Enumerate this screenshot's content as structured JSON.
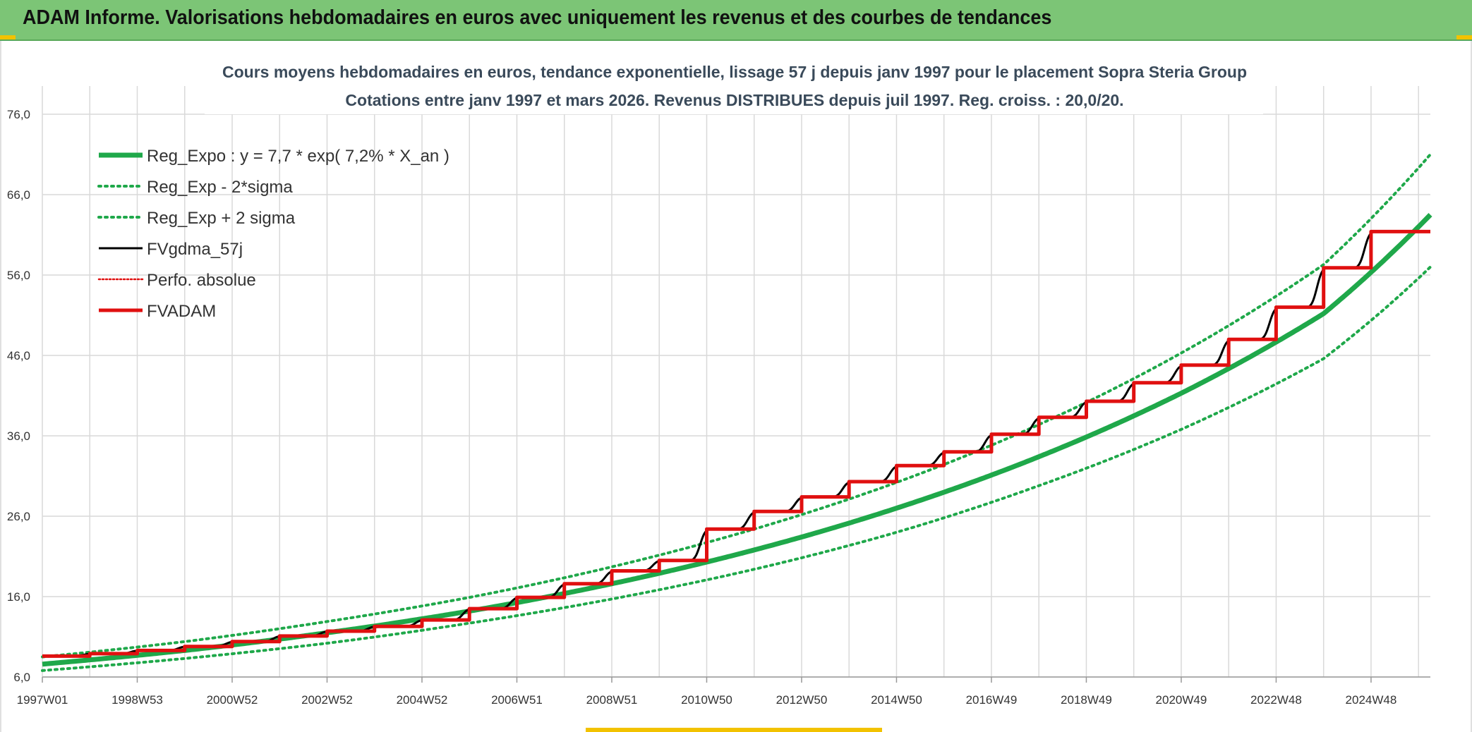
{
  "banner": {
    "title": "ADAM Informe. Valorisations hebdomadaires en euros avec uniquement les revenus et des courbes de tendances"
  },
  "colors": {
    "banner": "#7cc576",
    "trend": "#1fa84a",
    "gdma": "#000000",
    "adam": "#e01010",
    "perfo": "#e01010",
    "grid": "#d9d9d9"
  },
  "chart_data": {
    "type": "line",
    "title": "Cours moyens hebdomadaires en euros, tendance exponentielle, lissage 57 j depuis janv 1997 pour le placement Sopra Steria Group",
    "subtitle": "Cotations entre janv 1997 et mars 2026. Revenus DISTRIBUES depuis juil 1997. Reg. croiss. : 20,0/20.",
    "xlabel": "",
    "ylabel": "",
    "x_range": [
      1997.0,
      2026.25
    ],
    "ylim": [
      6.0,
      76.0
    ],
    "y_ticks": [
      "6,0",
      "16,0",
      "26,0",
      "36,0",
      "46,0",
      "56,0",
      "66,0",
      "76,0"
    ],
    "x_ticks": [
      {
        "label": "1997W01",
        "x": 1997.0
      },
      {
        "label": "1998W53",
        "x": 1999.0
      },
      {
        "label": "2000W52",
        "x": 2001.0
      },
      {
        "label": "2002W52",
        "x": 2003.0
      },
      {
        "label": "2004W52",
        "x": 2005.0
      },
      {
        "label": "2006W51",
        "x": 2007.0
      },
      {
        "label": "2008W51",
        "x": 2009.0
      },
      {
        "label": "2010W50",
        "x": 2011.0
      },
      {
        "label": "2012W50",
        "x": 2013.0
      },
      {
        "label": "2014W50",
        "x": 2015.0
      },
      {
        "label": "2016W49",
        "x": 2017.0
      },
      {
        "label": "2018W49",
        "x": 2019.0
      },
      {
        "label": "2020W49",
        "x": 2021.0
      },
      {
        "label": "2022W48",
        "x": 2023.0
      },
      {
        "label": "2024W48",
        "x": 2025.0
      }
    ],
    "grid": true,
    "legend_position": "top-left",
    "series": [
      {
        "name": "Reg_Expo : y = 7,7 * exp( 7,2% *  X_an )",
        "style": "solid-thick",
        "color": "#1fa84a",
        "x": [
          1997.0,
          2000.0,
          2003.0,
          2006.0,
          2009.0,
          2012.0,
          2015.0,
          2018.0,
          2021.0,
          2024.0,
          2026.25
        ],
        "y": [
          7.6,
          9.3,
          11.5,
          14.2,
          17.6,
          21.8,
          27.0,
          33.4,
          41.3,
          51.2,
          63.5
        ]
      },
      {
        "name": "Reg_Exp - 2*sigma",
        "style": "dotted",
        "color": "#1fa84a",
        "x": [
          1997.0,
          2000.0,
          2003.0,
          2006.0,
          2009.0,
          2012.0,
          2015.0,
          2018.0,
          2021.0,
          2024.0,
          2026.25
        ],
        "y": [
          6.8,
          8.3,
          10.2,
          12.7,
          15.7,
          19.4,
          24.0,
          29.8,
          36.8,
          45.6,
          57.0
        ]
      },
      {
        "name": "Reg_Exp + 2 sigma",
        "style": "dotted",
        "color": "#1fa84a",
        "x": [
          1997.0,
          2000.0,
          2003.0,
          2006.0,
          2009.0,
          2012.0,
          2015.0,
          2018.0,
          2021.0,
          2024.0,
          2026.25
        ],
        "y": [
          8.5,
          10.4,
          12.9,
          15.9,
          19.7,
          24.4,
          30.2,
          37.4,
          46.3,
          57.3,
          71.0
        ]
      },
      {
        "name": "FVgdma_57j",
        "style": "solid-smooth-steps",
        "color": "#000000",
        "step_x": [
          1997.0,
          1998.0,
          1999.0,
          2000.0,
          2001.0,
          2002.0,
          2003.0,
          2004.0,
          2005.0,
          2006.0,
          2007.0,
          2008.0,
          2009.0,
          2010.0,
          2011.0,
          2012.0,
          2013.0,
          2014.0,
          2015.0,
          2016.0,
          2017.0,
          2018.0,
          2019.0,
          2020.0,
          2021.0,
          2022.0,
          2023.0,
          2024.0,
          2025.0,
          2026.25
        ],
        "step_y": [
          8.6,
          8.9,
          9.3,
          9.8,
          10.4,
          11.1,
          11.7,
          12.3,
          13.1,
          14.5,
          15.9,
          17.6,
          19.2,
          20.5,
          24.4,
          26.6,
          28.4,
          30.3,
          32.3,
          34.0,
          36.2,
          38.3,
          40.3,
          42.6,
          44.8,
          48.0,
          52.0,
          56.9,
          61.4
        ]
      },
      {
        "name": "Perfo. absolue",
        "style": "dotted",
        "color": "#e01010",
        "x": [],
        "y": []
      },
      {
        "name": "FVADAM",
        "style": "solid-steps",
        "color": "#e01010",
        "step_x": [
          1997.0,
          1998.0,
          1999.0,
          2000.0,
          2001.0,
          2002.0,
          2003.0,
          2004.0,
          2005.0,
          2006.0,
          2007.0,
          2008.0,
          2009.0,
          2010.0,
          2011.0,
          2012.0,
          2013.0,
          2014.0,
          2015.0,
          2016.0,
          2017.0,
          2018.0,
          2019.0,
          2020.0,
          2021.0,
          2022.0,
          2023.0,
          2024.0,
          2025.0,
          2026.25
        ],
        "step_y": [
          8.6,
          8.9,
          9.3,
          9.8,
          10.4,
          11.1,
          11.7,
          12.3,
          13.1,
          14.5,
          15.9,
          17.6,
          19.2,
          20.5,
          24.4,
          26.6,
          28.4,
          30.3,
          32.3,
          34.0,
          36.2,
          38.3,
          40.3,
          42.6,
          44.8,
          48.0,
          52.0,
          56.9,
          61.4
        ]
      }
    ]
  }
}
